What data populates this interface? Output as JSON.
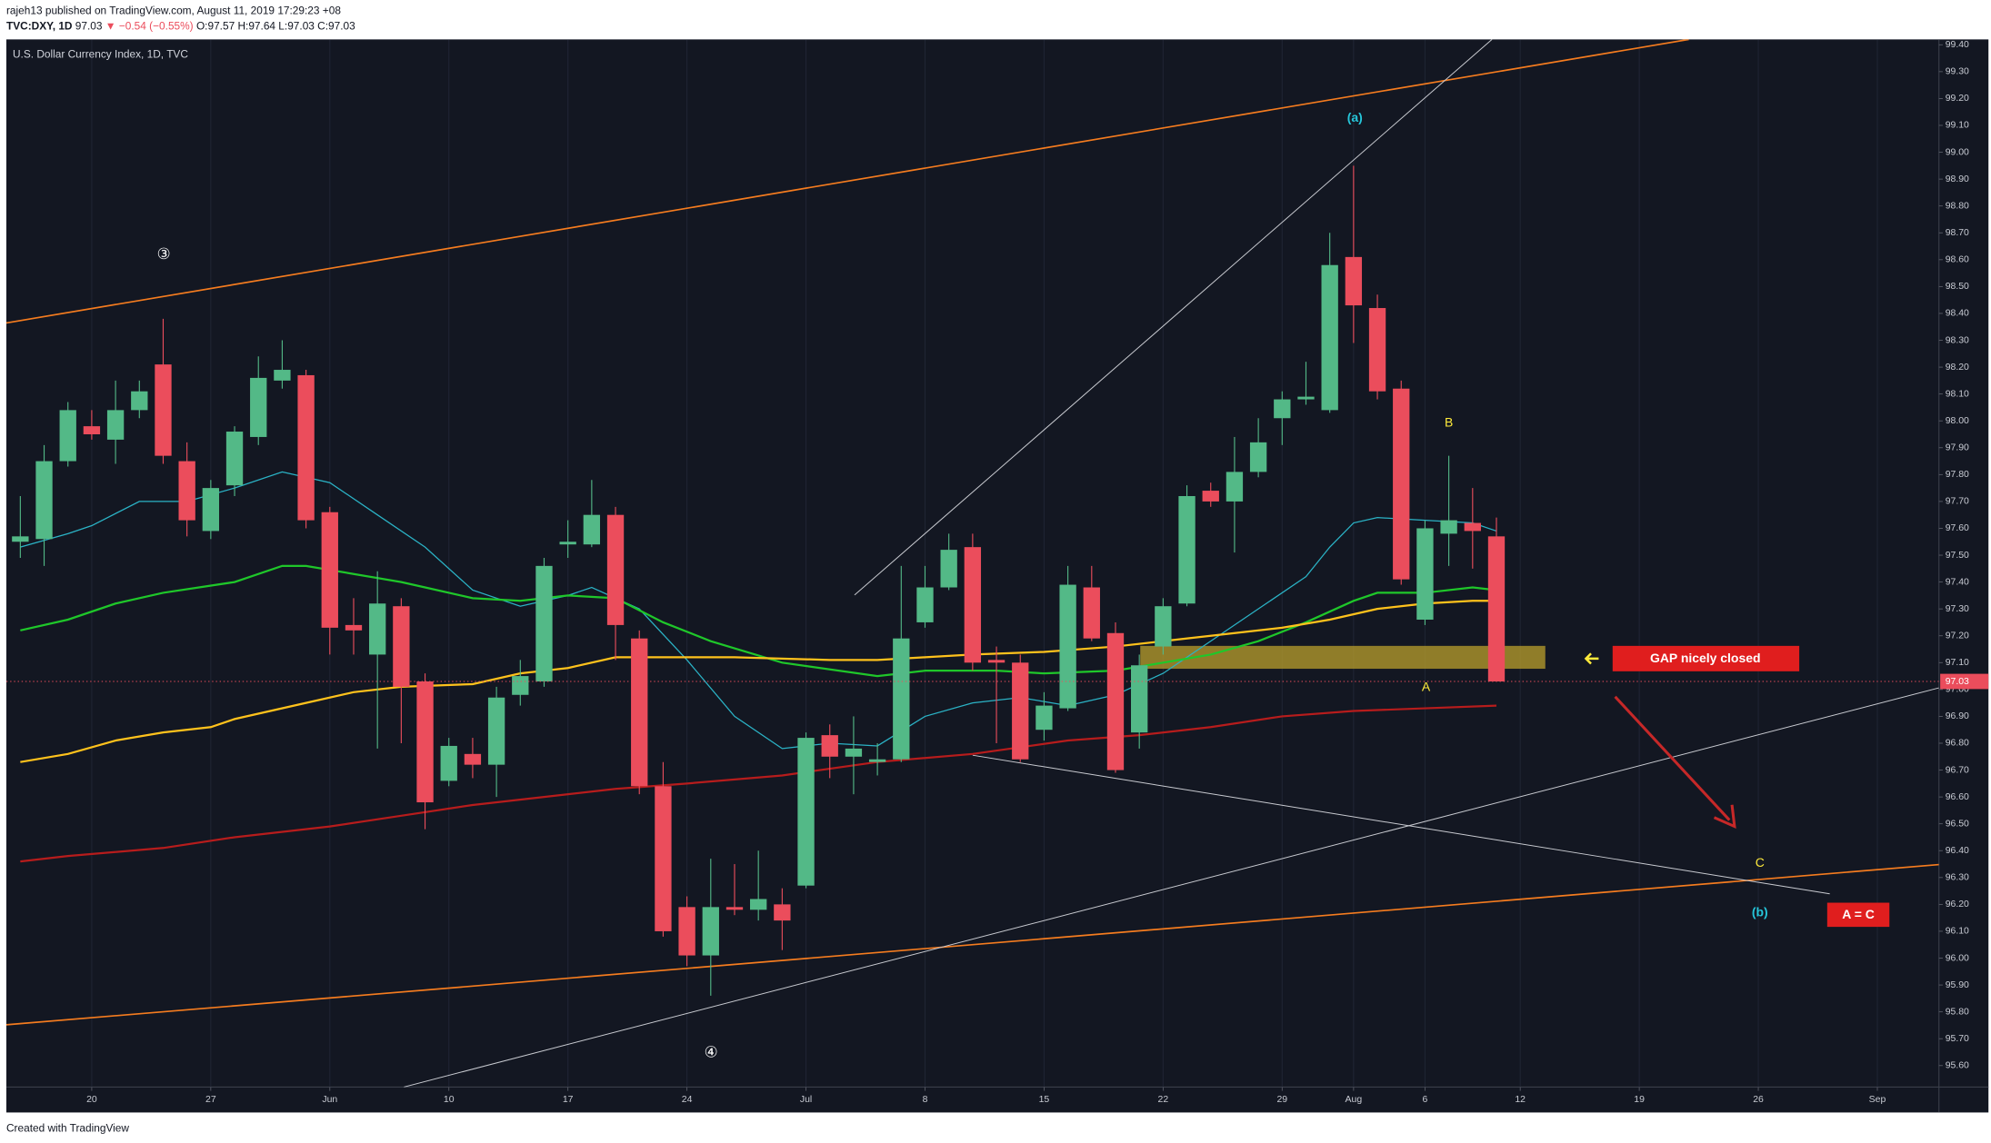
{
  "header": {
    "line1": "rajeh13 published on TradingView.com, August 11, 2019 17:29:23 +08",
    "symbol": "TVC:DXY, 1D",
    "last": "97.03",
    "change": "▼ −0.54 (−0.55%)",
    "ohlc": "O:97.57 H:97.64 L:97.03 C:97.03"
  },
  "footer": "Created with TradingView",
  "chart_data": {
    "type": "candlestick",
    "title": "U.S. Dollar Currency Index, 1D, TVC",
    "x": [
      "2019-05-15",
      "2019-05-16",
      "2019-05-17",
      "2019-05-20",
      "2019-05-21",
      "2019-05-22",
      "2019-05-23",
      "2019-05-24",
      "2019-05-27",
      "2019-05-28",
      "2019-05-29",
      "2019-05-30",
      "2019-05-31",
      "2019-06-03",
      "2019-06-04",
      "2019-06-05",
      "2019-06-06",
      "2019-06-07",
      "2019-06-10",
      "2019-06-11",
      "2019-06-12",
      "2019-06-13",
      "2019-06-14",
      "2019-06-17",
      "2019-06-18",
      "2019-06-19",
      "2019-06-20",
      "2019-06-21",
      "2019-06-24",
      "2019-06-25",
      "2019-06-26",
      "2019-06-27",
      "2019-06-28",
      "2019-07-01",
      "2019-07-02",
      "2019-07-03",
      "2019-07-04",
      "2019-07-05",
      "2019-07-08",
      "2019-07-09",
      "2019-07-10",
      "2019-07-11",
      "2019-07-12",
      "2019-07-15",
      "2019-07-16",
      "2019-07-17",
      "2019-07-18",
      "2019-07-19",
      "2019-07-22",
      "2019-07-23",
      "2019-07-24",
      "2019-07-25",
      "2019-07-26",
      "2019-07-29",
      "2019-07-30",
      "2019-07-31",
      "2019-08-01",
      "2019-08-02",
      "2019-08-05",
      "2019-08-06",
      "2019-08-07",
      "2019-08-08",
      "2019-08-09"
    ],
    "open": [
      97.55,
      97.56,
      97.85,
      97.98,
      97.93,
      98.04,
      98.21,
      97.85,
      97.59,
      97.76,
      97.94,
      98.15,
      98.17,
      97.66,
      97.24,
      97.13,
      97.31,
      97.03,
      96.66,
      96.76,
      96.72,
      96.98,
      97.03,
      97.54,
      97.54,
      97.65,
      97.19,
      96.64,
      96.19,
      96.01,
      96.19,
      96.18,
      96.2,
      96.27,
      96.83,
      96.75,
      96.73,
      96.74,
      97.25,
      97.38,
      97.53,
      97.11,
      97.1,
      96.85,
      96.93,
      97.38,
      97.21,
      96.84,
      97.16,
      97.32,
      97.74,
      97.7,
      97.81,
      98.01,
      98.08,
      98.04,
      98.61,
      98.42,
      98.12,
      97.26,
      97.58,
      97.62,
      97.57
    ],
    "high": [
      97.72,
      97.91,
      98.07,
      98.04,
      98.15,
      98.15,
      98.38,
      97.92,
      97.78,
      97.98,
      98.24,
      98.3,
      98.19,
      97.68,
      97.34,
      97.44,
      97.34,
      97.06,
      96.82,
      96.82,
      97.01,
      97.11,
      97.49,
      97.63,
      97.78,
      97.68,
      97.22,
      96.73,
      96.23,
      96.37,
      96.35,
      96.4,
      96.26,
      96.84,
      96.87,
      96.9,
      96.8,
      97.46,
      97.46,
      97.58,
      97.58,
      97.16,
      97.13,
      96.99,
      97.46,
      97.46,
      97.25,
      97.13,
      97.34,
      97.76,
      97.77,
      97.94,
      98.01,
      98.11,
      98.22,
      98.7,
      98.95,
      98.47,
      98.15,
      97.63,
      97.87,
      97.75,
      97.64
    ],
    "low": [
      97.49,
      97.46,
      97.83,
      97.93,
      97.84,
      98.01,
      97.84,
      97.57,
      97.56,
      97.72,
      97.91,
      98.12,
      97.6,
      97.13,
      97.13,
      96.78,
      96.8,
      96.48,
      96.64,
      96.67,
      96.6,
      96.94,
      97.01,
      97.49,
      97.53,
      97.11,
      96.61,
      96.08,
      95.97,
      95.86,
      96.16,
      96.14,
      96.03,
      96.26,
      96.67,
      96.61,
      96.68,
      96.73,
      97.23,
      97.37,
      97.07,
      96.8,
      96.73,
      96.81,
      96.92,
      97.18,
      96.69,
      96.78,
      97.13,
      97.31,
      97.68,
      97.51,
      97.79,
      97.91,
      98.06,
      98.03,
      98.29,
      98.08,
      97.39,
      97.24,
      97.46,
      97.45,
      97.03
    ],
    "close": [
      97.57,
      97.85,
      98.04,
      97.95,
      98.04,
      98.11,
      97.87,
      97.63,
      97.75,
      97.96,
      98.16,
      98.19,
      97.63,
      97.23,
      97.22,
      97.32,
      97.01,
      96.58,
      96.79,
      96.72,
      96.97,
      97.05,
      97.46,
      97.55,
      97.65,
      97.24,
      96.64,
      96.1,
      96.01,
      96.19,
      96.18,
      96.22,
      96.14,
      96.82,
      96.75,
      96.78,
      96.74,
      97.19,
      97.38,
      97.52,
      97.1,
      97.1,
      96.74,
      96.94,
      97.39,
      97.19,
      96.7,
      97.09,
      97.31,
      97.72,
      97.7,
      97.81,
      97.92,
      98.08,
      98.09,
      98.58,
      98.43,
      98.11,
      97.41,
      97.6,
      97.63,
      97.59,
      97.03
    ],
    "up_color": "#53b987",
    "down_color": "#eb4d5c",
    "lines": [
      {
        "color": "#2bb3c6",
        "x": [
          "2019-05-15",
          "2019-05-17",
          "2019-05-20",
          "2019-05-22",
          "2019-05-24",
          "2019-05-28",
          "2019-05-30",
          "2019-06-03",
          "2019-06-05",
          "2019-06-07",
          "2019-06-11",
          "2019-06-13",
          "2019-06-17",
          "2019-06-18",
          "2019-06-20",
          "2019-06-24",
          "2019-06-26",
          "2019-06-28",
          "2019-07-02",
          "2019-07-04",
          "2019-07-08",
          "2019-07-10",
          "2019-07-12",
          "2019-07-16",
          "2019-07-18",
          "2019-07-22",
          "2019-07-24",
          "2019-07-26",
          "2019-07-30",
          "2019-07-31",
          "2019-08-01",
          "2019-08-02",
          "2019-08-06",
          "2019-08-08",
          "2019-08-09"
        ],
        "values": [
          97.53,
          97.58,
          97.61,
          97.7,
          97.7,
          97.75,
          97.81,
          97.77,
          97.65,
          97.53,
          97.37,
          97.31,
          97.35,
          97.38,
          97.3,
          97.11,
          96.9,
          96.78,
          96.8,
          96.79,
          96.9,
          96.95,
          96.97,
          96.94,
          96.98,
          97.06,
          97.18,
          97.3,
          97.42,
          97.53,
          97.62,
          97.64,
          97.63,
          97.62,
          97.59
        ]
      },
      {
        "color": "#1fc72a",
        "x": [
          "2019-05-15",
          "2019-05-17",
          "2019-05-21",
          "2019-05-23",
          "2019-05-28",
          "2019-05-30",
          "2019-05-31",
          "2019-06-04",
          "2019-06-06",
          "2019-06-07",
          "2019-06-11",
          "2019-06-13",
          "2019-06-17",
          "2019-06-19",
          "2019-06-21",
          "2019-06-25",
          "2019-06-28",
          "2019-07-04",
          "2019-07-08",
          "2019-07-11",
          "2019-07-15",
          "2019-07-18",
          "2019-07-22",
          "2019-07-24",
          "2019-07-26",
          "2019-07-30",
          "2019-08-01",
          "2019-08-02",
          "2019-08-06",
          "2019-08-08",
          "2019-08-09"
        ],
        "values": [
          97.22,
          97.26,
          97.32,
          97.36,
          97.4,
          97.46,
          97.46,
          97.43,
          97.4,
          97.38,
          97.34,
          97.33,
          97.35,
          97.34,
          97.25,
          97.18,
          97.1,
          97.05,
          97.07,
          97.07,
          97.06,
          97.07,
          97.1,
          97.13,
          97.18,
          97.25,
          97.33,
          97.36,
          97.36,
          97.38,
          97.37
        ]
      },
      {
        "color": "#ffc21c",
        "x": [
          "2019-05-15",
          "2019-05-17",
          "2019-05-21",
          "2019-05-23",
          "2019-05-27",
          "2019-05-28",
          "2019-05-31",
          "2019-06-04",
          "2019-06-06",
          "2019-06-11",
          "2019-06-13",
          "2019-06-17",
          "2019-06-19",
          "2019-06-21",
          "2019-06-26",
          "2019-07-02",
          "2019-07-04",
          "2019-07-08",
          "2019-07-10",
          "2019-07-15",
          "2019-07-18",
          "2019-07-22",
          "2019-07-24",
          "2019-07-29",
          "2019-07-31",
          "2019-08-02",
          "2019-08-06",
          "2019-08-08",
          "2019-08-09"
        ],
        "values": [
          96.73,
          96.76,
          96.81,
          96.84,
          96.86,
          96.89,
          96.95,
          96.99,
          97.01,
          97.02,
          97.06,
          97.08,
          97.12,
          97.12,
          97.12,
          97.11,
          97.11,
          97.12,
          97.13,
          97.14,
          97.16,
          97.18,
          97.2,
          97.23,
          97.26,
          97.3,
          97.32,
          97.33,
          97.33
        ]
      },
      {
        "color": "#b71c1c",
        "x": [
          "2019-05-15",
          "2019-05-17",
          "2019-05-23",
          "2019-05-28",
          "2019-06-03",
          "2019-06-06",
          "2019-06-11",
          "2019-06-14",
          "2019-06-19",
          "2019-06-24",
          "2019-06-28",
          "2019-07-04",
          "2019-07-10",
          "2019-07-16",
          "2019-07-19",
          "2019-07-24",
          "2019-07-29",
          "2019-08-01",
          "2019-08-06",
          "2019-08-09"
        ],
        "values": [
          96.36,
          96.38,
          96.41,
          96.45,
          96.49,
          96.53,
          96.57,
          96.6,
          96.63,
          96.65,
          96.68,
          96.73,
          96.76,
          96.81,
          96.83,
          96.86,
          96.9,
          96.92,
          96.93,
          96.94
        ]
      }
    ],
    "last_price": 97.03,
    "last_price_color": "#eb4d5c",
    "ylim": [
      95.52,
      99.42
    ],
    "yticks": [
      {
        "value": 95.6,
        "label": "95.60"
      },
      {
        "value": 95.7,
        "label": "95.70"
      },
      {
        "value": 95.8,
        "label": "95.80"
      },
      {
        "value": 95.9,
        "label": "95.90"
      },
      {
        "value": 96.0,
        "label": "96.00"
      },
      {
        "value": 96.1,
        "label": "96.10"
      },
      {
        "value": 96.2,
        "label": "96.20"
      },
      {
        "value": 96.3,
        "label": "96.30"
      },
      {
        "value": 96.4,
        "label": "96.40"
      },
      {
        "value": 96.5,
        "label": "96.50"
      },
      {
        "value": 96.6,
        "label": "96.60"
      },
      {
        "value": 96.7,
        "label": "96.70"
      },
      {
        "value": 96.8,
        "label": "96.80"
      },
      {
        "value": 96.9,
        "label": "96.90"
      },
      {
        "value": 97.0,
        "label": "97.00"
      },
      {
        "value": 97.1,
        "label": "97.10"
      },
      {
        "value": 97.2,
        "label": "97.20"
      },
      {
        "value": 97.3,
        "label": "97.30"
      },
      {
        "value": 97.4,
        "label": "97.40"
      },
      {
        "value": 97.5,
        "label": "97.50"
      },
      {
        "value": 97.6,
        "label": "97.60"
      },
      {
        "value": 97.7,
        "label": "97.70"
      },
      {
        "value": 97.8,
        "label": "97.80"
      },
      {
        "value": 97.9,
        "label": "97.90"
      },
      {
        "value": 98.0,
        "label": "98.00"
      },
      {
        "value": 98.1,
        "label": "98.10"
      },
      {
        "value": 98.2,
        "label": "98.20"
      },
      {
        "value": 98.3,
        "label": "98.30"
      },
      {
        "value": 98.4,
        "label": "98.40"
      },
      {
        "value": 98.5,
        "label": "98.50"
      },
      {
        "value": 98.6,
        "label": "98.60"
      },
      {
        "value": 98.7,
        "label": "98.70"
      },
      {
        "value": 98.8,
        "label": "98.80"
      },
      {
        "value": 98.9,
        "label": "98.90"
      },
      {
        "value": 99.0,
        "label": "99.00"
      },
      {
        "value": 99.1,
        "label": "99.10"
      },
      {
        "value": 99.2,
        "label": "99.20"
      },
      {
        "value": 99.3,
        "label": "99.30"
      },
      {
        "value": 99.4,
        "label": "99.40"
      }
    ],
    "xlim": [
      "2019-05-14",
      "2019-09-04"
    ],
    "xticks": [
      {
        "value": "2019-05-20",
        "label": "20"
      },
      {
        "value": "2019-05-27",
        "label": "27"
      },
      {
        "value": "2019-06-03",
        "label": "Jun"
      },
      {
        "value": "2019-06-10",
        "label": "10"
      },
      {
        "value": "2019-06-17",
        "label": "17"
      },
      {
        "value": "2019-06-24",
        "label": "24"
      },
      {
        "value": "2019-07-01",
        "label": "Jul"
      },
      {
        "value": "2019-07-08",
        "label": "8"
      },
      {
        "value": "2019-07-15",
        "label": "15"
      },
      {
        "value": "2019-07-22",
        "label": "22"
      },
      {
        "value": "2019-07-29",
        "label": "29"
      },
      {
        "value": "2019-08-01",
        "label": "Aug"
      },
      {
        "value": "2019-08-06",
        "label": "6"
      },
      {
        "value": "2019-08-12",
        "label": "12"
      },
      {
        "value": "2019-08-19",
        "label": "19"
      },
      {
        "value": "2019-08-26",
        "label": "26"
      },
      {
        "value": "2019-09-02",
        "label": "Sep"
      }
    ],
    "grid": "x",
    "annotations": [
      "(a)",
      "B",
      "A",
      "C",
      "(b)",
      "③",
      "④",
      "GAP nicely closed",
      "A = C"
    ]
  }
}
